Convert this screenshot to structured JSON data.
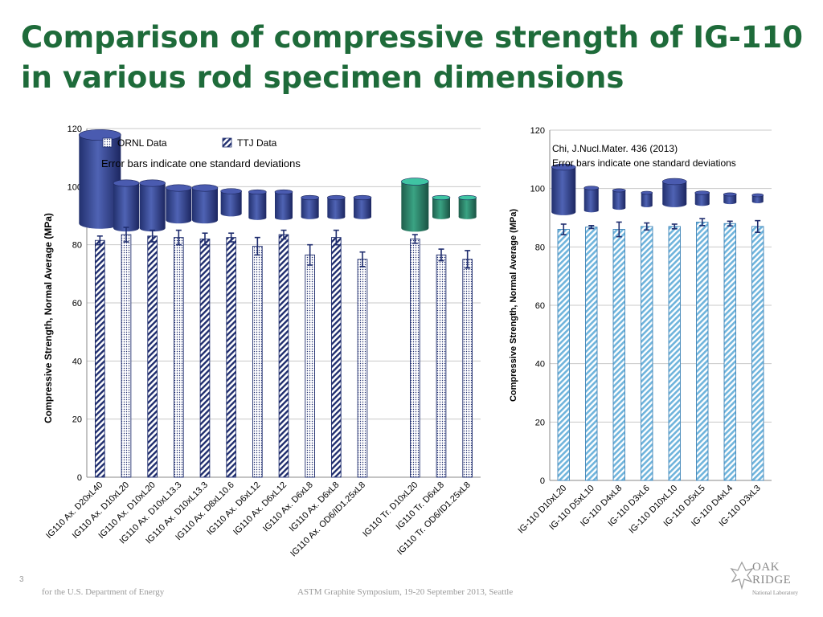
{
  "slide": {
    "title": "Comparison of compressive strength of IG-110 in various rod specimen dimensions",
    "slide_number": "3",
    "footer_left": "for the U.S. Department of Energy",
    "footer_center": "ASTM Graphite Symposium, 19-20 September 2013, Seattle",
    "logo": {
      "line1": "OAK",
      "line2": "RIDGE",
      "line3": "National Laboratory"
    }
  },
  "colors": {
    "title": "#1e6b3a",
    "navy": "#1f2d6e",
    "light_blue": "#6fb4dc",
    "cylinder_blue": "#3d4f9a",
    "cylinder_green": "#2f8c73"
  },
  "chart_data": [
    {
      "type": "bar",
      "ylabel": "Compressive Strength, Normal Average  (MPa)",
      "ylim": [
        0,
        120
      ],
      "yticks": [
        0,
        20,
        40,
        60,
        80,
        100,
        120
      ],
      "grid": true,
      "legend": {
        "placement": "top-left",
        "entries": [
          {
            "label": "ORNL Data",
            "pattern": "dots"
          },
          {
            "label": "TTJ Data",
            "pattern": "hatch"
          }
        ]
      },
      "annotations": [
        "Error bars indicate one standard deviations"
      ],
      "categories": [
        "IG110 Ax. D20xL40",
        "IG110 Ax. D10xL20",
        "IG110 Ax. D10xL20",
        "IG110 Ax. D10xL13.3",
        "IG110 Ax. D10xL13.3",
        "IG110 Ax. D8xL10.6",
        "IG110 Ax. D6xL12",
        "IG110 Ax. D6xL12",
        "IG110 Ax. D6xL8",
        "IG110 Ax. D6xL8",
        "IG110 Ax. OD6/ID1.25xL8",
        "",
        "IG110 Tr. D10xL20",
        "IG110 Tr. D6xL8",
        "IG110 Tr. OD6/ID1.25xL8"
      ],
      "values": [
        81.5,
        83.5,
        83,
        82.5,
        82,
        82.5,
        79.5,
        83.5,
        76.5,
        82.5,
        75,
        null,
        82,
        76.5,
        75
      ],
      "errors": [
        1.5,
        2.5,
        2,
        2.5,
        2,
        1.5,
        3,
        1.5,
        3.5,
        2.5,
        2.5,
        null,
        1.5,
        2,
        3
      ],
      "source": [
        "TTJ",
        "ORNL",
        "TTJ",
        "ORNL",
        "TTJ",
        "TTJ",
        "ORNL",
        "TTJ",
        "ORNL",
        "TTJ",
        "ORNL",
        null,
        "ORNL",
        "ORNL",
        "ORNL"
      ]
    },
    {
      "type": "bar",
      "ylabel": "Compressive Strength, Normal Average  (MPa)",
      "ylim": [
        0,
        120
      ],
      "yticks": [
        0,
        20,
        40,
        60,
        80,
        100,
        120
      ],
      "grid": true,
      "annotations": [
        "Chi, J.Nucl.Mater. 436 (2013)",
        "Error bars indicate one standard deviations"
      ],
      "categories": [
        "IG-110  D10xL20",
        "IG-110  D5xL10",
        "IG-110  D4xL8",
        "IG-110  D3xL6",
        "IG-110  D10xL10",
        "IG-110  D5xL5",
        "IG-110  D4xL4",
        "IG-110  D3xL3"
      ],
      "values": [
        86,
        86.8,
        86,
        87,
        87,
        88.5,
        88,
        87
      ],
      "errors": [
        1.8,
        0.5,
        2.5,
        1.2,
        0.8,
        1.2,
        0.8,
        2
      ]
    }
  ]
}
